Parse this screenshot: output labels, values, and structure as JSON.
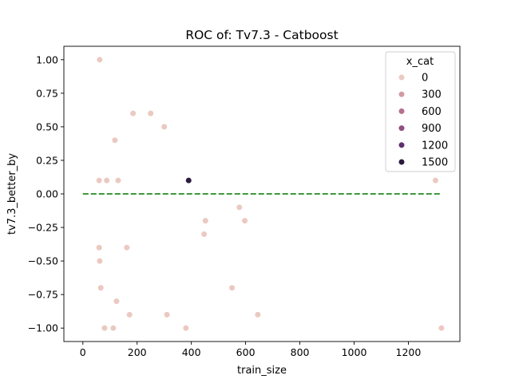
{
  "chart_data": {
    "type": "scatter",
    "title": "ROC of: Tv7.3 - Catboost",
    "xlabel": "train_size",
    "ylabel": "tv7.3_better_by",
    "xlim": [
      -70,
      1390
    ],
    "ylim": [
      -1.1,
      1.1
    ],
    "xticks": [
      0,
      200,
      400,
      600,
      800,
      1000,
      1200
    ],
    "yticks": [
      -1.0,
      -0.75,
      -0.5,
      -0.25,
      0.0,
      0.25,
      0.5,
      0.75,
      1.0
    ],
    "xtick_labels": [
      "0",
      "200",
      "400",
      "600",
      "800",
      "1000",
      "1200"
    ],
    "ytick_labels": [
      "−1.00",
      "−0.75",
      "−0.50",
      "−0.25",
      "0.00",
      "0.25",
      "0.50",
      "0.75",
      "1.00"
    ],
    "grid": false,
    "legend": {
      "title": "x_cat",
      "placement": "top-right",
      "entries": [
        {
          "label": "0",
          "color": "#ebc9c1"
        },
        {
          "label": "300",
          "color": "#d29ba4"
        },
        {
          "label": "600",
          "color": "#b5708f"
        },
        {
          "label": "900",
          "color": "#8f4f82"
        },
        {
          "label": "1200",
          "color": "#5e306e"
        },
        {
          "label": "1500",
          "color": "#2b1b3f"
        }
      ]
    },
    "reference_line": {
      "y": 0.0,
      "x_range": [
        0,
        1320
      ],
      "color": "#228b22",
      "style": "dashed"
    },
    "points": [
      {
        "x": 62,
        "y": 1.0,
        "color": "#ebc9c1"
      },
      {
        "x": 185,
        "y": 0.6,
        "color": "#ebc9c1"
      },
      {
        "x": 250,
        "y": 0.6,
        "color": "#ebc9c1"
      },
      {
        "x": 300,
        "y": 0.5,
        "color": "#ebc9c1"
      },
      {
        "x": 118,
        "y": 0.4,
        "color": "#ebc9c1"
      },
      {
        "x": 60,
        "y": 0.1,
        "color": "#ebc9c1"
      },
      {
        "x": 88,
        "y": 0.1,
        "color": "#ebc9c1"
      },
      {
        "x": 130,
        "y": 0.1,
        "color": "#ebc9c1"
      },
      {
        "x": 390,
        "y": 0.1,
        "color": "#2b1b3f"
      },
      {
        "x": 1300,
        "y": 0.1,
        "color": "#ebc9c1"
      },
      {
        "x": 577,
        "y": -0.1,
        "color": "#ebc9c1"
      },
      {
        "x": 452,
        "y": -0.2,
        "color": "#ebc9c1"
      },
      {
        "x": 597,
        "y": -0.2,
        "color": "#ebc9c1"
      },
      {
        "x": 447,
        "y": -0.3,
        "color": "#ebc9c1"
      },
      {
        "x": 60,
        "y": -0.4,
        "color": "#ebc9c1"
      },
      {
        "x": 162,
        "y": -0.4,
        "color": "#ebc9c1"
      },
      {
        "x": 62,
        "y": -0.5,
        "color": "#ebc9c1"
      },
      {
        "x": 550,
        "y": -0.7,
        "color": "#ebc9c1"
      },
      {
        "x": 66,
        "y": -0.7,
        "color": "#ebc9c1"
      },
      {
        "x": 124,
        "y": -0.8,
        "color": "#ebc9c1"
      },
      {
        "x": 172,
        "y": -0.9,
        "color": "#ebc9c1"
      },
      {
        "x": 310,
        "y": -0.9,
        "color": "#ebc9c1"
      },
      {
        "x": 645,
        "y": -0.9,
        "color": "#ebc9c1"
      },
      {
        "x": 80,
        "y": -1.0,
        "color": "#ebc9c1"
      },
      {
        "x": 112,
        "y": -1.0,
        "color": "#ebc9c1"
      },
      {
        "x": 380,
        "y": -1.0,
        "color": "#ebc9c1"
      },
      {
        "x": 1322,
        "y": -1.0,
        "color": "#ebc9c1"
      }
    ]
  }
}
